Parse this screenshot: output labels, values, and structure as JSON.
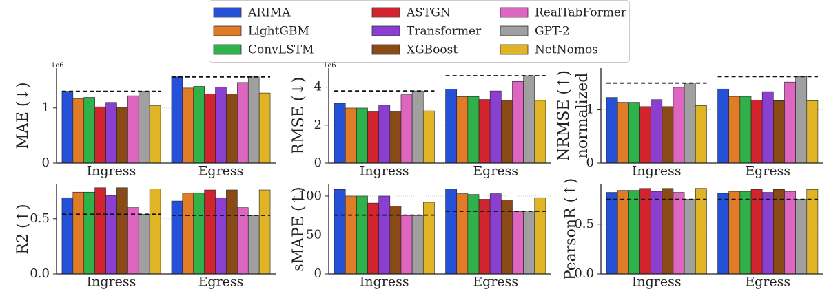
{
  "chart_data": [
    {
      "type": "bar",
      "ylabel": [
        "MAE (↓)"
      ],
      "yoffset_label": "1e6",
      "categories": [
        "Ingress",
        "Egress"
      ],
      "ylim": [
        0,
        1.72
      ],
      "yticks": [
        0,
        1
      ],
      "grid": true,
      "hlines": [
        1.3,
        1.56
      ],
      "series": [
        {
          "name": "ARIMA",
          "color": "#2451d8",
          "values": [
            1.3,
            1.56
          ]
        },
        {
          "name": "LightGBM",
          "color": "#e07b26",
          "values": [
            1.17,
            1.36
          ]
        },
        {
          "name": "ConvLSTM",
          "color": "#2fb24a",
          "values": [
            1.19,
            1.39
          ]
        },
        {
          "name": "ASTGN",
          "color": "#d1242f",
          "values": [
            1.02,
            1.25
          ]
        },
        {
          "name": "Transformer",
          "color": "#8a3fd1",
          "values": [
            1.1,
            1.38
          ]
        },
        {
          "name": "XGBoost",
          "color": "#8a4a16",
          "values": [
            1.01,
            1.25
          ]
        },
        {
          "name": "RealTabFormer",
          "color": "#dd66c0",
          "values": [
            1.22,
            1.46
          ]
        },
        {
          "name": "GPT-2",
          "color": "#a0a0a0",
          "values": [
            1.3,
            1.56
          ]
        },
        {
          "name": "NetNomos",
          "color": "#e0b424",
          "values": [
            1.04,
            1.27
          ]
        }
      ]
    },
    {
      "type": "bar",
      "ylabel": [
        "RMSE (↓)"
      ],
      "yoffset_label": "1e6",
      "categories": [
        "Ingress",
        "Egress"
      ],
      "ylim": [
        0,
        5.0
      ],
      "yticks": [
        0,
        2,
        4
      ],
      "grid": true,
      "hlines": [
        3.8,
        4.6
      ],
      "series": [
        {
          "name": "ARIMA",
          "color": "#2451d8",
          "values": [
            3.15,
            3.9
          ]
        },
        {
          "name": "LightGBM",
          "color": "#e07b26",
          "values": [
            2.9,
            3.5
          ]
        },
        {
          "name": "ConvLSTM",
          "color": "#2fb24a",
          "values": [
            2.9,
            3.5
          ]
        },
        {
          "name": "ASTGN",
          "color": "#d1242f",
          "values": [
            2.7,
            3.35
          ]
        },
        {
          "name": "Transformer",
          "color": "#8a3fd1",
          "values": [
            3.05,
            3.8
          ]
        },
        {
          "name": "XGBoost",
          "color": "#8a4a16",
          "values": [
            2.7,
            3.3
          ]
        },
        {
          "name": "RealTabFormer",
          "color": "#dd66c0",
          "values": [
            3.6,
            4.3
          ]
        },
        {
          "name": "GPT-2",
          "color": "#a0a0a0",
          "values": [
            3.8,
            4.6
          ]
        },
        {
          "name": "NetNomos",
          "color": "#e0b424",
          "values": [
            2.75,
            3.3
          ]
        }
      ]
    },
    {
      "type": "bar",
      "ylabel": [
        "NRMSE (↑)",
        "normalized"
      ],
      "categories": [
        "Ingress",
        "Egress"
      ],
      "ylim": [
        0,
        1.78
      ],
      "yticks": [
        0,
        1
      ],
      "grid": true,
      "hlines": [
        1.5,
        1.62
      ],
      "series": [
        {
          "name": "ARIMA",
          "color": "#2451d8",
          "values": [
            1.23,
            1.39
          ]
        },
        {
          "name": "LightGBM",
          "color": "#e07b26",
          "values": [
            1.14,
            1.25
          ]
        },
        {
          "name": "ConvLSTM",
          "color": "#2fb24a",
          "values": [
            1.14,
            1.25
          ]
        },
        {
          "name": "ASTGN",
          "color": "#d1242f",
          "values": [
            1.06,
            1.18
          ]
        },
        {
          "name": "Transformer",
          "color": "#8a3fd1",
          "values": [
            1.19,
            1.34
          ]
        },
        {
          "name": "XGBoost",
          "color": "#8a4a16",
          "values": [
            1.06,
            1.17
          ]
        },
        {
          "name": "RealTabFormer",
          "color": "#dd66c0",
          "values": [
            1.42,
            1.52
          ]
        },
        {
          "name": "GPT-2",
          "color": "#a0a0a0",
          "values": [
            1.5,
            1.62
          ]
        },
        {
          "name": "NetNomos",
          "color": "#e0b424",
          "values": [
            1.08,
            1.17
          ]
        }
      ]
    },
    {
      "type": "bar",
      "ylabel": [
        "R2 (↑)"
      ],
      "categories": [
        "Ingress",
        "Egress"
      ],
      "ylim": [
        0,
        0.81
      ],
      "yticks": [
        {
          "value": 0,
          "label": "0.0"
        },
        0.5
      ],
      "grid": true,
      "hlines": [
        0.54,
        0.53
      ],
      "series": [
        {
          "name": "ARIMA",
          "color": "#2451d8",
          "values": [
            0.69,
            0.66
          ]
        },
        {
          "name": "LightGBM",
          "color": "#e07b26",
          "values": [
            0.74,
            0.73
          ]
        },
        {
          "name": "ConvLSTM",
          "color": "#2fb24a",
          "values": [
            0.74,
            0.73
          ]
        },
        {
          "name": "ASTGN",
          "color": "#d1242f",
          "values": [
            0.78,
            0.76
          ]
        },
        {
          "name": "Transformer",
          "color": "#8a3fd1",
          "values": [
            0.71,
            0.69
          ]
        },
        {
          "name": "XGBoost",
          "color": "#8a4a16",
          "values": [
            0.78,
            0.76
          ]
        },
        {
          "name": "RealTabFormer",
          "color": "#dd66c0",
          "values": [
            0.6,
            0.6
          ]
        },
        {
          "name": "GPT-2",
          "color": "#a0a0a0",
          "values": [
            0.54,
            0.53
          ]
        },
        {
          "name": "NetNomos",
          "color": "#e0b424",
          "values": [
            0.77,
            0.76
          ]
        }
      ]
    },
    {
      "type": "bar",
      "ylabel": [
        "sMAPE (↑)"
      ],
      "categories": [
        "Ingress",
        "Egress"
      ],
      "ylim": [
        0,
        115
      ],
      "yticks": [
        0,
        50,
        100
      ],
      "grid": true,
      "hlines": [
        75.5,
        80.5
      ],
      "series": [
        {
          "name": "ARIMA",
          "color": "#2451d8",
          "values": [
            108.5,
            109
          ]
        },
        {
          "name": "LightGBM",
          "color": "#e07b26",
          "values": [
            100,
            103
          ]
        },
        {
          "name": "ConvLSTM",
          "color": "#2fb24a",
          "values": [
            100,
            102
          ]
        },
        {
          "name": "ASTGN",
          "color": "#d1242f",
          "values": [
            91,
            96
          ]
        },
        {
          "name": "Transformer",
          "color": "#8a3fd1",
          "values": [
            100,
            103
          ]
        },
        {
          "name": "XGBoost",
          "color": "#8a4a16",
          "values": [
            87,
            95
          ]
        },
        {
          "name": "RealTabFormer",
          "color": "#dd66c0",
          "values": [
            75,
            80
          ]
        },
        {
          "name": "GPT-2",
          "color": "#a0a0a0",
          "values": [
            75,
            81
          ]
        },
        {
          "name": "NetNomos",
          "color": "#e0b424",
          "values": [
            92,
            98
          ]
        }
      ]
    },
    {
      "type": "bar",
      "ylabel": [
        "PearsonR (↑)"
      ],
      "categories": [
        "Ingress",
        "Egress"
      ],
      "ylim": [
        0,
        0.9
      ],
      "yticks": [
        {
          "value": 0,
          "label": "0.0"
        },
        0.5
      ],
      "grid": true,
      "hlines": [
        0.75,
        0.75
      ],
      "series": [
        {
          "name": "ARIMA",
          "color": "#2451d8",
          "values": [
            0.82,
            0.81
          ]
        },
        {
          "name": "LightGBM",
          "color": "#e07b26",
          "values": [
            0.84,
            0.83
          ]
        },
        {
          "name": "ConvLSTM",
          "color": "#2fb24a",
          "values": [
            0.84,
            0.83
          ]
        },
        {
          "name": "ASTGN",
          "color": "#d1242f",
          "values": [
            0.86,
            0.85
          ]
        },
        {
          "name": "Transformer",
          "color": "#8a3fd1",
          "values": [
            0.83,
            0.82
          ]
        },
        {
          "name": "XGBoost",
          "color": "#8a4a16",
          "values": [
            0.86,
            0.85
          ]
        },
        {
          "name": "RealTabFormer",
          "color": "#dd66c0",
          "values": [
            0.82,
            0.83
          ]
        },
        {
          "name": "GPT-2",
          "color": "#a0a0a0",
          "values": [
            0.75,
            0.75
          ]
        },
        {
          "name": "NetNomos",
          "color": "#e0b424",
          "values": [
            0.86,
            0.85
          ]
        }
      ]
    }
  ]
}
